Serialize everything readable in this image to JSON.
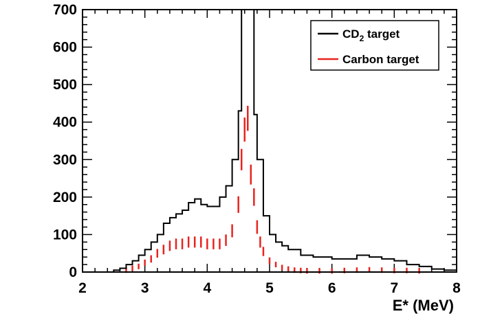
{
  "chart_data": {
    "type": "line",
    "title": "",
    "xlabel": "E* (MeV)",
    "ylabel": "",
    "xlim": [
      2,
      8
    ],
    "ylim": [
      0,
      700
    ],
    "x_ticks": [
      "2",
      "3",
      "4",
      "5",
      "6",
      "7",
      "8"
    ],
    "y_ticks": [
      "0",
      "100",
      "200",
      "300",
      "400",
      "500",
      "600",
      "700"
    ],
    "grid": false,
    "legend_position": "top-right",
    "series": [
      {
        "name": "CD₂ target",
        "label_main": "CD",
        "label_sub": "2",
        "label_rest": " target",
        "style": "histogram-step",
        "color": "#000000",
        "x": [
          2.5,
          2.6,
          2.7,
          2.8,
          2.9,
          3.0,
          3.1,
          3.2,
          3.3,
          3.4,
          3.5,
          3.6,
          3.7,
          3.8,
          3.9,
          4.0,
          4.1,
          4.2,
          4.3,
          4.4,
          4.5,
          4.55,
          4.6,
          4.65,
          4.7,
          4.75,
          4.8,
          4.9,
          5.0,
          5.1,
          5.2,
          5.3,
          5.5,
          5.7,
          6.0,
          6.2,
          6.4,
          6.6,
          6.8,
          7.0,
          7.2,
          7.4,
          7.6,
          7.8,
          7.95
        ],
        "y": [
          5,
          10,
          20,
          30,
          45,
          60,
          80,
          100,
          130,
          145,
          155,
          165,
          185,
          195,
          180,
          175,
          175,
          200,
          230,
          300,
          430,
          700,
          700,
          700,
          700,
          420,
          300,
          150,
          100,
          80,
          70,
          60,
          45,
          40,
          35,
          35,
          45,
          40,
          35,
          30,
          20,
          15,
          8,
          5,
          5
        ]
      },
      {
        "name": "Carbon target",
        "style": "error-bars",
        "color": "#e8231e",
        "x": [
          2.7,
          2.8,
          2.9,
          3.0,
          3.1,
          3.2,
          3.3,
          3.4,
          3.5,
          3.6,
          3.7,
          3.8,
          3.9,
          4.0,
          4.1,
          4.2,
          4.3,
          4.4,
          4.5,
          4.55,
          4.6,
          4.65,
          4.7,
          4.75,
          4.8,
          4.85,
          4.9,
          5.0,
          5.1,
          5.2,
          5.3,
          5.4,
          5.5,
          5.6,
          5.8,
          6.0,
          6.2,
          6.4,
          6.6,
          6.8,
          7.0,
          7.2,
          7.4
        ],
        "y": [
          5,
          10,
          15,
          25,
          35,
          50,
          60,
          70,
          75,
          75,
          80,
          80,
          80,
          75,
          75,
          75,
          85,
          110,
          180,
          300,
          380,
          410,
          260,
          200,
          120,
          80,
          55,
          30,
          20,
          12,
          8,
          5,
          4,
          3,
          3,
          3,
          4,
          5,
          6,
          5,
          4,
          4,
          3
        ]
      }
    ]
  }
}
